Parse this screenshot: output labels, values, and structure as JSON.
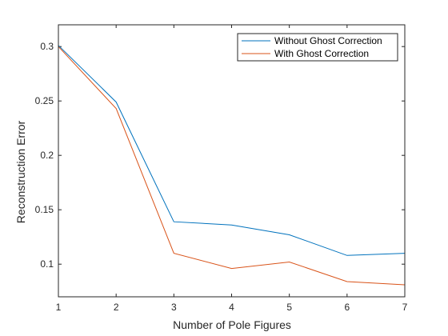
{
  "chart_data": {
    "type": "line",
    "title": "",
    "xlabel": "Number of Pole Figures",
    "ylabel": "Reconstruction Error",
    "xlim": [
      1,
      7
    ],
    "ylim": [
      0.07,
      0.32
    ],
    "x": [
      1,
      2,
      3,
      4,
      5,
      6,
      7
    ],
    "xticks": [
      1,
      2,
      3,
      4,
      5,
      6,
      7
    ],
    "yticks": [
      0.1,
      0.15,
      0.2,
      0.25,
      0.3
    ],
    "ytick_labels": [
      "0.1",
      "0.15",
      "0.2",
      "0.25",
      "0.3"
    ],
    "grid": false,
    "legend_position": "top-right",
    "series": [
      {
        "name": "Without Ghost Correction",
        "color": "#0072BD",
        "values": [
          0.301,
          0.249,
          0.139,
          0.136,
          0.127,
          0.108,
          0.11
        ]
      },
      {
        "name": "With Ghost Correction",
        "color": "#D95319",
        "values": [
          0.3,
          0.243,
          0.11,
          0.096,
          0.102,
          0.084,
          0.081
        ]
      }
    ]
  }
}
